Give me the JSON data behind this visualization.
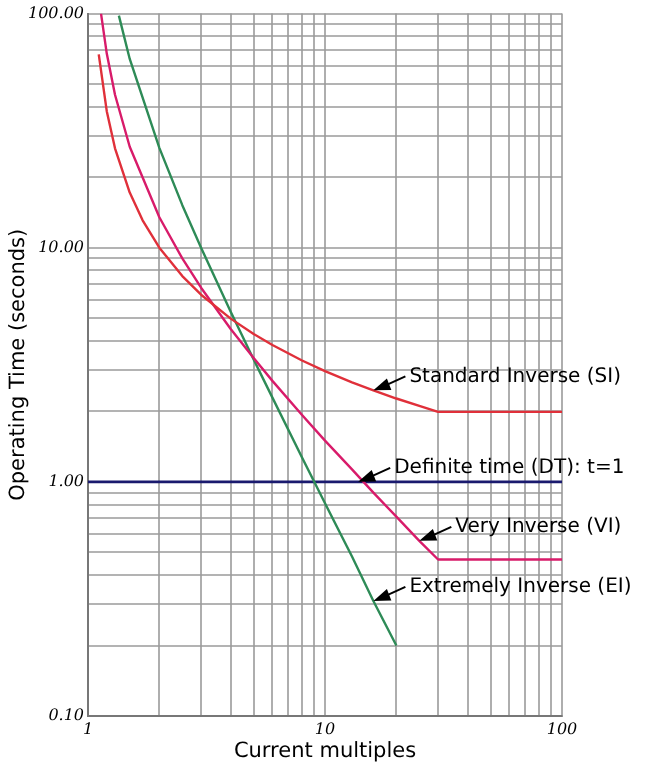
{
  "chart_data": {
    "type": "line",
    "xlabel": "Current multiples",
    "ylabel": "Operating Time (seconds)",
    "log": "xy",
    "grid": true,
    "legend": false,
    "marker": "none",
    "line_style": "solid",
    "xlim": [
      1,
      100
    ],
    "ylim": [
      0.1,
      100
    ],
    "xticks": [
      1,
      {
        "value": 2,
        "label": null
      },
      {
        "value": 3,
        "label": null
      },
      {
        "value": 4,
        "label": null
      },
      {
        "value": 5,
        "label": null
      },
      {
        "value": 6,
        "label": null
      },
      {
        "value": 7,
        "label": null
      },
      {
        "value": 8,
        "label": null
      },
      {
        "value": 9,
        "label": null
      },
      10,
      {
        "value": 20,
        "label": null
      },
      {
        "value": 30,
        "label": null
      },
      {
        "value": 40,
        "label": null
      },
      {
        "value": 50,
        "label": null
      },
      {
        "value": 60,
        "label": null
      },
      {
        "value": 70,
        "label": null
      },
      {
        "value": 80,
        "label": null
      },
      {
        "value": 90,
        "label": null
      },
      100
    ],
    "yticks": [
      {
        "value": 0.1,
        "label": "0.10"
      },
      {
        "value": 0.2,
        "label": null
      },
      {
        "value": 0.3,
        "label": null
      },
      {
        "value": 0.4,
        "label": null
      },
      {
        "value": 0.5,
        "label": null
      },
      {
        "value": 0.6,
        "label": null
      },
      {
        "value": 0.7,
        "label": null
      },
      {
        "value": 0.8,
        "label": null
      },
      {
        "value": 0.9,
        "label": null
      },
      {
        "value": 1,
        "label": "1.00"
      },
      {
        "value": 2,
        "label": null
      },
      {
        "value": 3,
        "label": null
      },
      {
        "value": 4,
        "label": null
      },
      {
        "value": 5,
        "label": null
      },
      {
        "value": 6,
        "label": null
      },
      {
        "value": 7,
        "label": null
      },
      {
        "value": 8,
        "label": null
      },
      {
        "value": 9,
        "label": null
      },
      {
        "value": 10,
        "label": "10.00"
      },
      {
        "value": 20,
        "label": null
      },
      {
        "value": 30,
        "label": null
      },
      {
        "value": 40,
        "label": null
      },
      {
        "value": 50,
        "label": null
      },
      {
        "value": 60,
        "label": null
      },
      {
        "value": 70,
        "label": null
      },
      {
        "value": 80,
        "label": null
      },
      {
        "value": 90,
        "label": null
      },
      {
        "value": 100,
        "label": "100.00"
      }
    ],
    "series": [
      {
        "name": "Standard Inverse (SI)",
        "color": "#e0303a",
        "x": [
          1.11,
          1.2,
          1.3,
          1.5,
          1.7,
          2,
          2.5,
          3,
          4,
          5,
          6,
          8,
          10,
          13,
          16,
          20,
          25,
          30,
          100
        ],
        "values": [
          67,
          38.3,
          26.6,
          17.2,
          13.1,
          10,
          7.57,
          6.3,
          4.98,
          4.28,
          3.84,
          3.3,
          2.97,
          2.66,
          2.46,
          2.27,
          2.11,
          1.99,
          1.99
        ]
      },
      {
        "name": "Very Inverse (VI)",
        "color": "#d81b6a",
        "x": [
          1.135,
          1.2,
          1.3,
          1.5,
          2,
          2.5,
          3,
          4,
          5,
          6,
          8,
          10,
          13,
          16,
          20,
          25,
          30,
          100
        ],
        "values": [
          100,
          67.5,
          45,
          27,
          13.5,
          9,
          6.75,
          4.5,
          3.38,
          2.7,
          1.93,
          1.5,
          1.13,
          0.9,
          0.71,
          0.56,
          0.466,
          0.466
        ]
      },
      {
        "name": "Extremely Inverse (EI)",
        "color": "#2e8b57",
        "x": [
          1.35,
          1.5,
          2,
          2.5,
          3,
          4,
          5,
          6,
          8,
          10,
          13,
          16,
          20
        ],
        "values": [
          98,
          64,
          26.7,
          15.2,
          10,
          5.33,
          3.33,
          2.29,
          1.27,
          0.81,
          0.48,
          0.31,
          0.2
        ]
      }
    ],
    "ref_lines": [
      {
        "axis": "y",
        "value": 1,
        "label": "Definite time (DT): t=1",
        "color": "#1a1a6e"
      }
    ]
  }
}
